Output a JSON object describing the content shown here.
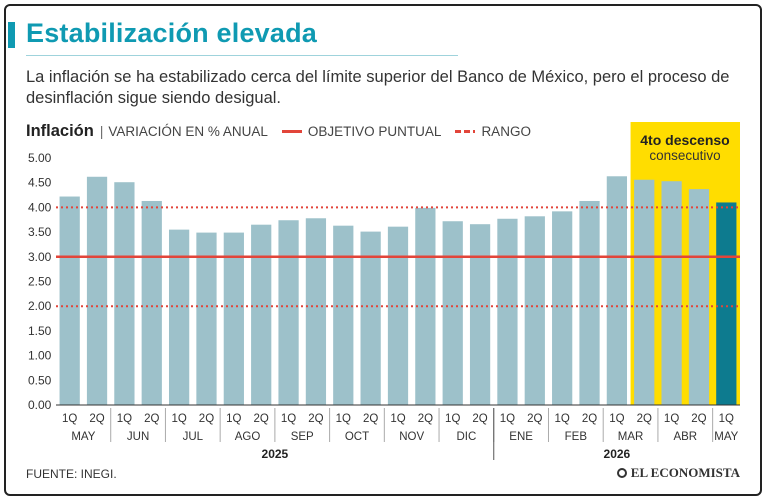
{
  "header": {
    "title": "Estabilización elevada",
    "subtitle": "La inflación se ha estabilizado cerca del límite superior del Banco de México, pero el proceso de desinflación sigue siendo desigual."
  },
  "legend": {
    "title": "Inflación",
    "separator": "|",
    "series_label": "VARIACIÓN EN % ANUAL",
    "target_label": "OBJETIVO PUNTUAL",
    "range_label": "RANGO"
  },
  "annotation": {
    "line1": "4to descenso",
    "line2": "consecutivo"
  },
  "footer": {
    "source": "FUENTE: INEGI.",
    "brand": "EL ECONOMISTA"
  },
  "colors": {
    "bar": "#9dc1ca",
    "bar_last": "#0d7b8f",
    "highlight": "#ffdd00",
    "target_line": "#e2453a",
    "title": "#0f9ab2"
  },
  "chart_data": {
    "type": "bar",
    "title": "Inflación",
    "ylabel": "VARIACIÓN EN % ANUAL",
    "ylim": [
      0,
      5
    ],
    "yticks": [
      "0.00",
      "0.50",
      "1.00",
      "1.50",
      "2.00",
      "2.50",
      "3.00",
      "3.50",
      "4.00",
      "4.50",
      "5.00"
    ],
    "categories": [
      "1Q",
      "2Q",
      "1Q",
      "2Q",
      "1Q",
      "2Q",
      "1Q",
      "2Q",
      "1Q",
      "2Q",
      "1Q",
      "2Q",
      "1Q",
      "2Q",
      "1Q",
      "2Q",
      "1Q",
      "2Q",
      "1Q",
      "2Q",
      "1Q",
      "2Q",
      "1Q",
      "2Q",
      "1Q"
    ],
    "values": [
      4.22,
      4.62,
      4.51,
      4.13,
      3.55,
      3.49,
      3.49,
      3.65,
      3.74,
      3.78,
      3.63,
      3.51,
      3.61,
      3.99,
      3.72,
      3.66,
      3.77,
      3.82,
      3.92,
      4.13,
      4.63,
      4.56,
      4.53,
      4.37,
      4.1
    ],
    "months": [
      {
        "label": "MAY",
        "count": 2
      },
      {
        "label": "JUN",
        "count": 2
      },
      {
        "label": "JUL",
        "count": 2
      },
      {
        "label": "AGO",
        "count": 2
      },
      {
        "label": "SEP",
        "count": 2
      },
      {
        "label": "OCT",
        "count": 2
      },
      {
        "label": "NOV",
        "count": 2
      },
      {
        "label": "DIC",
        "count": 2
      },
      {
        "label": "ENE",
        "count": 2
      },
      {
        "label": "FEB",
        "count": 2
      },
      {
        "label": "MAR",
        "count": 2
      },
      {
        "label": "ABR",
        "count": 2
      },
      {
        "label": "MAY",
        "count": 1
      }
    ],
    "years": [
      {
        "label": "2025",
        "count": 16
      },
      {
        "label": "2026",
        "count": 9
      }
    ],
    "target": 3.0,
    "range": [
      2.0,
      4.0
    ],
    "highlight_from_index": 21,
    "grid": false
  }
}
